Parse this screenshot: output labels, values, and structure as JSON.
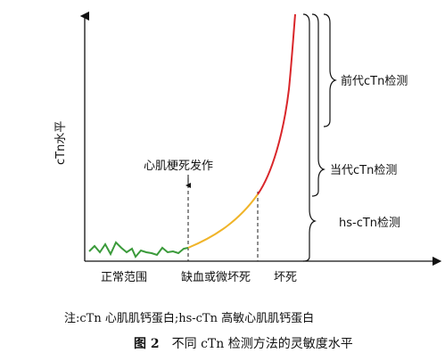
{
  "chart_data": {
    "type": "line",
    "ylabel": "cTn水平",
    "xlabel": "",
    "x_segments": [
      "正常范围",
      "缺血或微坏死",
      "坏死"
    ],
    "event_annotation": "心肌梗死发作",
    "series": [
      {
        "segment": "正常范围",
        "color": "#3a9a3a"
      },
      {
        "segment": "缺血或微坏死",
        "color": "#f0b429"
      },
      {
        "segment": "坏死",
        "color": "#d9262a"
      }
    ],
    "sensitivity_ranges": [
      {
        "label": "前代cTn检测"
      },
      {
        "label": "当代cTn检测"
      },
      {
        "label": "hs-cTn检测"
      }
    ],
    "grid": false,
    "legend": "none"
  },
  "note": "注:cTn 心肌肌钙蛋白;hs-cTn 高敏心肌肌钙蛋白",
  "caption": {
    "number": "图 2",
    "text": "不同 cTn 检测方法的灵敏度水平"
  }
}
